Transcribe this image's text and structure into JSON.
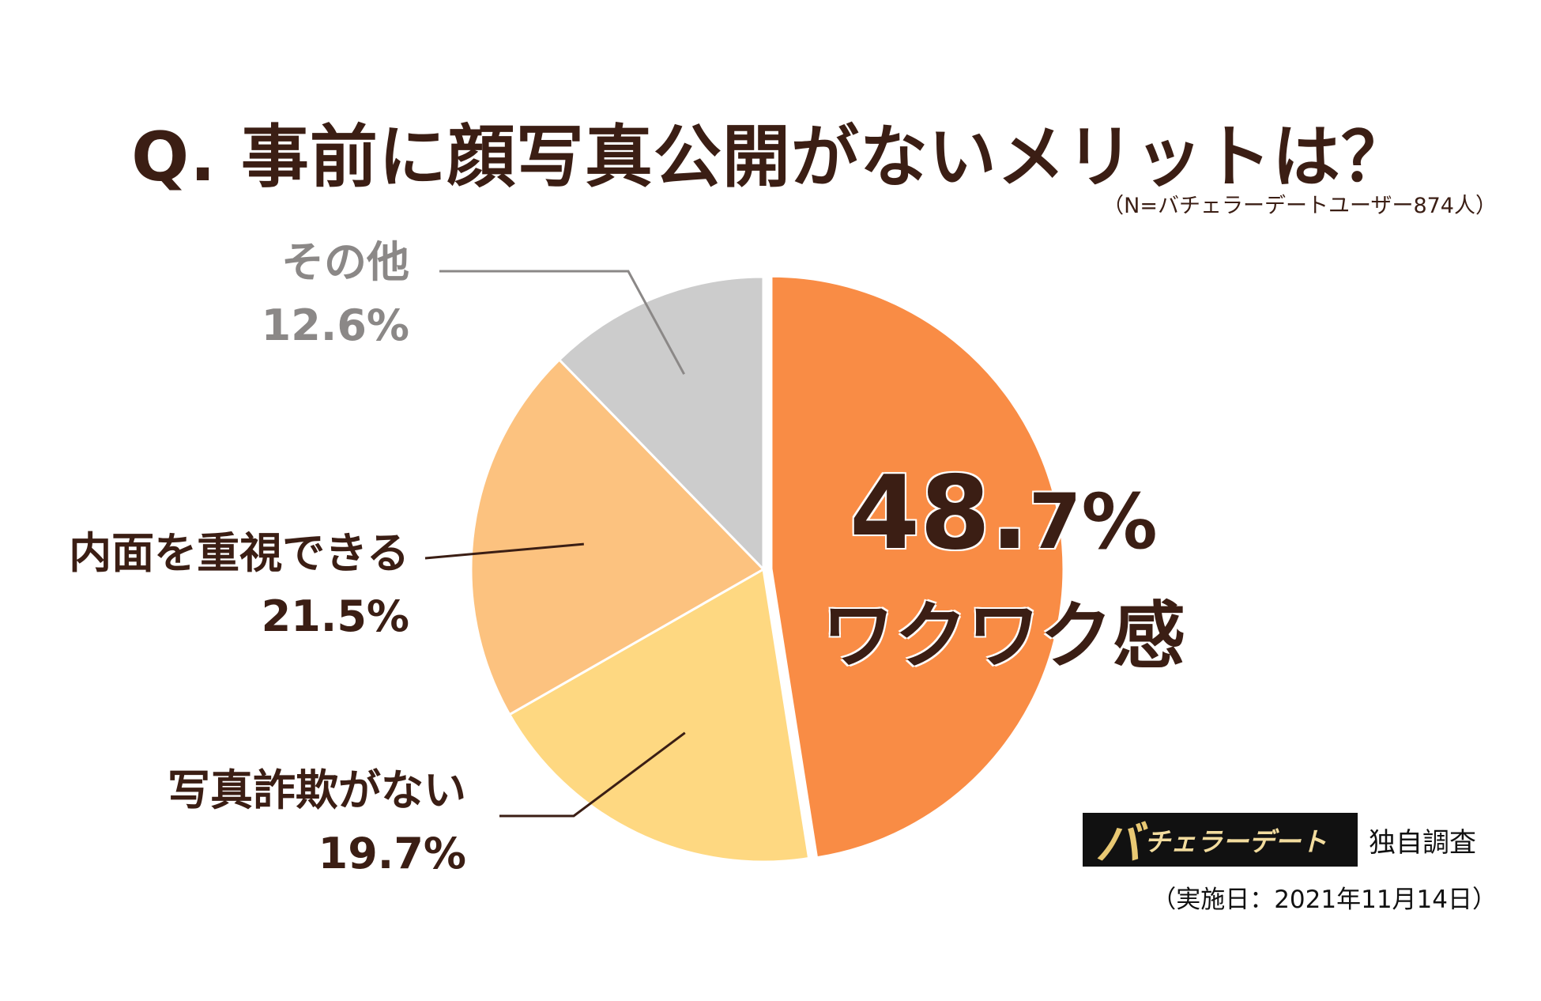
{
  "chart_data": {
    "type": "pie",
    "title": "Q. 事前に顔写真公開がないメリットは？",
    "subtitle": "（N=バチェラーデートユーザー874人）",
    "slices": [
      {
        "label": "ワクワク感",
        "value": 48.7,
        "pct_label": "48.7%",
        "pct_int": "48.",
        "pct_dec": "7%",
        "color": "#f98c45"
      },
      {
        "label": "写真詐欺がない",
        "value": 19.7,
        "pct_label": "19.7%",
        "color": "#fed881"
      },
      {
        "label": "内面を重視できる",
        "value": 21.5,
        "pct_label": "21.5%",
        "color": "#fcc27f"
      },
      {
        "label": "その他",
        "value": 12.6,
        "pct_label": "12.6%",
        "color": "#cccccc"
      }
    ],
    "start_angle_deg": 0,
    "direction": "clockwise"
  },
  "brand": {
    "logo_big": "バ",
    "logo_rest": "チェラーデート",
    "tag": "独自調査",
    "date": "（実施日：2021年11月14日）"
  }
}
